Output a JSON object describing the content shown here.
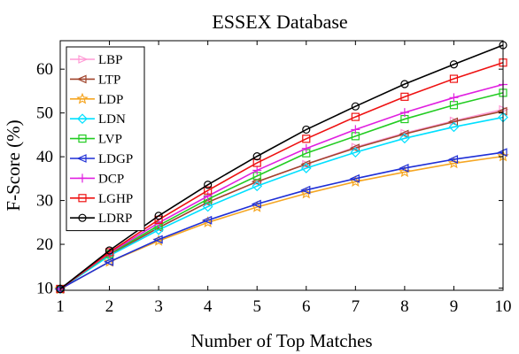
{
  "chart_data": {
    "type": "line",
    "title": "ESSEX Database",
    "xlabel": "Number of Top Matches",
    "ylabel": "F-Score (%)",
    "xlim": [
      1,
      10
    ],
    "ylim": [
      9.5,
      66.5
    ],
    "xticks": [
      1,
      2,
      3,
      4,
      5,
      6,
      7,
      8,
      9,
      10
    ],
    "yticks": [
      10,
      20,
      30,
      40,
      50,
      60
    ],
    "grid": false,
    "legend_position": "top-left",
    "x": [
      1,
      2,
      3,
      4,
      5,
      6,
      7,
      8,
      9,
      10
    ],
    "series": [
      {
        "name": "LBP",
        "color": "#ff9ad5",
        "marker": "triangle-right",
        "values": [
          9.8,
          17.6,
          23.8,
          29.6,
          34.3,
          38.3,
          42.2,
          45.4,
          48.2,
          50.8
        ]
      },
      {
        "name": "LTP",
        "color": "#a0442c",
        "marker": "triangle-left",
        "values": [
          9.8,
          17.6,
          23.8,
          29.6,
          34.3,
          38.3,
          42.0,
          45.2,
          48.0,
          50.4
        ]
      },
      {
        "name": "LDP",
        "color": "#f5a623",
        "marker": "star",
        "values": [
          9.8,
          16.0,
          20.8,
          25.0,
          28.5,
          31.6,
          34.3,
          36.5,
          38.5,
          40.1
        ]
      },
      {
        "name": "LDN",
        "color": "#00e0ff",
        "marker": "diamond",
        "values": [
          9.8,
          17.4,
          23.3,
          28.6,
          33.3,
          37.4,
          41.0,
          44.2,
          46.8,
          49.0
        ]
      },
      {
        "name": "LVP",
        "color": "#22cc22",
        "marker": "square",
        "values": [
          9.8,
          17.8,
          24.3,
          30.3,
          35.6,
          40.8,
          44.7,
          48.6,
          51.8,
          54.6
        ]
      },
      {
        "name": "LDGP",
        "color": "#1f2fd6",
        "marker": "triangle-left",
        "values": [
          9.8,
          16.0,
          21.1,
          25.5,
          29.2,
          32.4,
          35.0,
          37.4,
          39.4,
          41.0
        ]
      },
      {
        "name": "DCP",
        "color": "#e020e0",
        "marker": "plus",
        "values": [
          9.8,
          18.0,
          24.9,
          31.0,
          36.9,
          41.9,
          46.2,
          50.1,
          53.5,
          56.5
        ]
      },
      {
        "name": "LGHP",
        "color": "#ee1111",
        "marker": "square",
        "values": [
          9.8,
          18.2,
          25.6,
          32.3,
          38.6,
          44.1,
          49.1,
          53.7,
          57.8,
          61.5
        ]
      },
      {
        "name": "LDRP",
        "color": "#000000",
        "marker": "circle",
        "values": [
          9.8,
          18.6,
          26.5,
          33.6,
          40.1,
          46.2,
          51.5,
          56.6,
          61.1,
          65.5
        ]
      }
    ]
  }
}
